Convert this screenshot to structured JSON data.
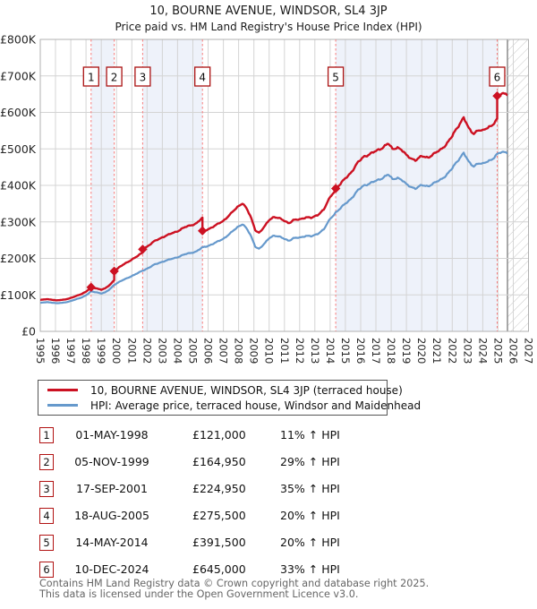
{
  "title": "10, BOURNE AVENUE, WINDSOR, SL4 3JP",
  "subtitle": "Price paid vs. HM Land Registry's House Price Index (HPI)",
  "legend": {
    "series1": "10, BOURNE AVENUE, WINDSOR, SL4 3JP (terraced house)",
    "series2": "HPI: Average price, terraced house, Windsor and Maidenhead"
  },
  "table": {
    "rows": [
      {
        "num": "1",
        "date": "01-MAY-1998",
        "price": "£121,000",
        "hpi": "11% ↑ HPI"
      },
      {
        "num": "2",
        "date": "05-NOV-1999",
        "price": "£164,950",
        "hpi": "29% ↑ HPI"
      },
      {
        "num": "3",
        "date": "17-SEP-2001",
        "price": "£224,950",
        "hpi": "35% ↑ HPI"
      },
      {
        "num": "4",
        "date": "18-AUG-2005",
        "price": "£275,500",
        "hpi": "20% ↑ HPI"
      },
      {
        "num": "5",
        "date": "14-MAY-2014",
        "price": "£391,500",
        "hpi": "20% ↑ HPI"
      },
      {
        "num": "6",
        "date": "10-DEC-2024",
        "price": "£645,000",
        "hpi": "33% ↑ HPI"
      }
    ]
  },
  "footer": {
    "line1": "Contains HM Land Registry data © Crown copyright and database right 2025.",
    "line2": "This data is licensed under the Open Government Licence v3.0."
  },
  "chart_data": {
    "type": "line",
    "title": "10, BOURNE AVENUE, WINDSOR, SL4 3JP",
    "subtitle": "Price paid vs. HM Land Registry's House Price Index (HPI)",
    "xlim": [
      1995,
      2027
    ],
    "ylim": [
      0,
      800000
    ],
    "grid": true,
    "legend_position": "below",
    "y_ticks": [
      "£0",
      "£100K",
      "£200K",
      "£300K",
      "£400K",
      "£500K",
      "£600K",
      "£700K",
      "£800K"
    ],
    "x_ticks": [
      "1995",
      "1996",
      "1997",
      "1998",
      "1999",
      "2000",
      "2001",
      "2002",
      "2003",
      "2004",
      "2005",
      "2006",
      "2007",
      "2008",
      "2009",
      "2010",
      "2011",
      "2012",
      "2013",
      "2014",
      "2015",
      "2016",
      "2017",
      "2018",
      "2019",
      "2020",
      "2021",
      "2022",
      "2023",
      "2024",
      "2025",
      "2026",
      "2027"
    ],
    "x_data_end": 2025.62,
    "colors": {
      "price_line": "#cc1122",
      "hpi_line": "#6699cc",
      "purchase_dashed_line": "#f87c7c",
      "ownership_band": "#eef2fa",
      "grid_line": "#d4d4d4",
      "plot_border": "#b0b0b0",
      "hatch_line": "#c9c9c9",
      "now_line": "#8c8c8c",
      "marker_box_border": "#aa1111"
    },
    "series": [
      {
        "name": "10, BOURNE AVENUE, WINDSOR, SL4 3JP (terraced house)",
        "color": "#cc1122",
        "note": "price paid, scaled by HPI between sales"
      },
      {
        "name": "HPI: Average price, terraced house, Windsor and Maidenhead",
        "color": "#6699cc"
      }
    ],
    "purchases": [
      {
        "label": "1",
        "date": "01-MAY-1998",
        "year": 1998.33,
        "price_gbp": 121000,
        "vs_hpi": "11% ↑ HPI"
      },
      {
        "label": "2",
        "date": "05-NOV-1999",
        "year": 1999.846,
        "price_gbp": 164950,
        "vs_hpi": "29% ↑ HPI"
      },
      {
        "label": "3",
        "date": "17-SEP-2001",
        "year": 2001.712,
        "price_gbp": 224950,
        "vs_hpi": "35% ↑ HPI"
      },
      {
        "label": "4",
        "date": "18-AUG-2005",
        "year": 2005.63,
        "price_gbp": 275500,
        "vs_hpi": "20% ↑ HPI"
      },
      {
        "label": "5",
        "date": "14-MAY-2014",
        "year": 2014.367,
        "price_gbp": 391500,
        "vs_hpi": "20% ↑ HPI"
      },
      {
        "label": "6",
        "date": "10-DEC-2024",
        "year": 2024.945,
        "price_gbp": 645000,
        "vs_hpi": "33% ↑ HPI"
      }
    ],
    "ownership_shaded_bands": [
      [
        1998.33,
        1999.846
      ],
      [
        2001.712,
        2005.63
      ],
      [
        2014.367,
        2024.945
      ]
    ],
    "hpi_anchors": [
      [
        1995.0,
        78000
      ],
      [
        1995.4,
        80000
      ],
      [
        1995.75,
        79000
      ],
      [
        1996.1,
        77000
      ],
      [
        1996.5,
        78500
      ],
      [
        1996.9,
        82000
      ],
      [
        1997.3,
        87000
      ],
      [
        1997.7,
        93000
      ],
      [
        1998.0,
        99000
      ],
      [
        1998.33,
        109200
      ],
      [
        1998.7,
        107000
      ],
      [
        1999.0,
        104000
      ],
      [
        1999.25,
        106500
      ],
      [
        1999.55,
        115000
      ],
      [
        1999.846,
        127900
      ],
      [
        2000.2,
        136000
      ],
      [
        2000.6,
        144000
      ],
      [
        2001.0,
        152000
      ],
      [
        2001.4,
        159500
      ],
      [
        2001.712,
        166600
      ],
      [
        2002.0,
        172000
      ],
      [
        2002.5,
        183000
      ],
      [
        2003.0,
        191000
      ],
      [
        2003.5,
        197000
      ],
      [
        2004.0,
        203500
      ],
      [
        2004.4,
        210000
      ],
      [
        2004.8,
        214500
      ],
      [
        2005.2,
        218500
      ],
      [
        2005.63,
        229600
      ],
      [
        2006.0,
        234500
      ],
      [
        2006.5,
        243000
      ],
      [
        2007.0,
        254000
      ],
      [
        2007.5,
        270000
      ],
      [
        2008.0,
        288000
      ],
      [
        2008.25,
        294500
      ],
      [
        2008.5,
        283000
      ],
      [
        2008.8,
        262000
      ],
      [
        2009.1,
        232000
      ],
      [
        2009.35,
        226000
      ],
      [
        2009.7,
        240000
      ],
      [
        2010.0,
        256000
      ],
      [
        2010.3,
        263000
      ],
      [
        2010.7,
        258500
      ],
      [
        2011.0,
        254000
      ],
      [
        2011.3,
        248500
      ],
      [
        2011.6,
        255000
      ],
      [
        2012.0,
        257000
      ],
      [
        2012.4,
        262000
      ],
      [
        2012.8,
        260000
      ],
      [
        2013.2,
        268000
      ],
      [
        2013.6,
        280000
      ],
      [
        2014.0,
        308000
      ],
      [
        2014.367,
        326250
      ],
      [
        2014.7,
        338000
      ],
      [
        2015.0,
        350000
      ],
      [
        2015.4,
        365000
      ],
      [
        2015.8,
        385000
      ],
      [
        2016.2,
        400000
      ],
      [
        2016.6,
        405500
      ],
      [
        2017.0,
        412000
      ],
      [
        2017.4,
        420000
      ],
      [
        2017.8,
        430000
      ],
      [
        2018.1,
        415500
      ],
      [
        2018.4,
        422000
      ],
      [
        2018.7,
        415000
      ],
      [
        2019.0,
        402000
      ],
      [
        2019.3,
        396000
      ],
      [
        2019.6,
        392000
      ],
      [
        2020.0,
        400000
      ],
      [
        2020.4,
        398000
      ],
      [
        2020.8,
        406000
      ],
      [
        2021.2,
        414000
      ],
      [
        2021.6,
        428000
      ],
      [
        2022.0,
        446000
      ],
      [
        2022.4,
        470000
      ],
      [
        2022.75,
        490000
      ],
      [
        2023.1,
        462000
      ],
      [
        2023.4,
        452000
      ],
      [
        2023.7,
        462000
      ],
      [
        2024.0,
        458000
      ],
      [
        2024.3,
        465000
      ],
      [
        2024.6,
        472000
      ],
      [
        2024.945,
        484960
      ],
      [
        2025.2,
        490000
      ],
      [
        2025.62,
        492000
      ]
    ]
  }
}
